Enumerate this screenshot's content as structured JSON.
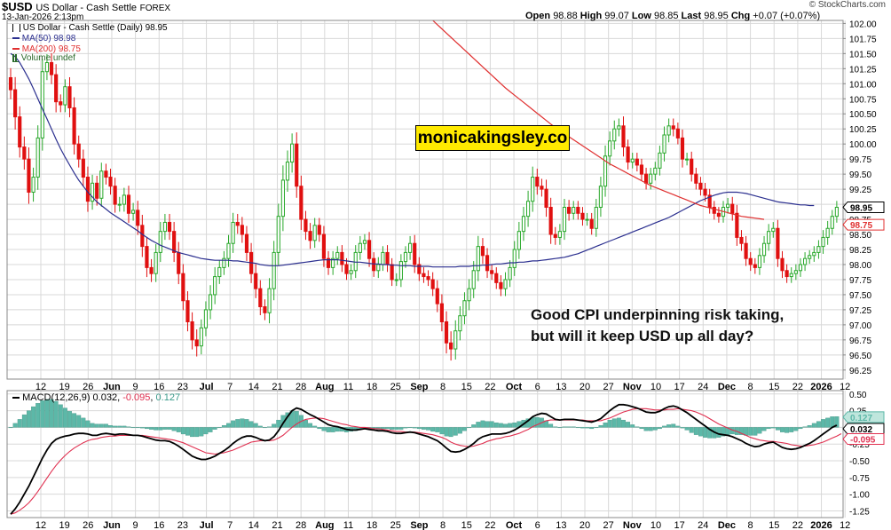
{
  "header": {
    "symbol": "$USD",
    "name": "US Dollar - Cash Settle",
    "exchange": "FOREX",
    "date": "13-Jan-2026 2:13pm",
    "open_label": "Open",
    "open": "98.88",
    "high_label": "High",
    "high": "99.07",
    "low_label": "Low",
    "low": "98.85",
    "last_label": "Last",
    "last": "98.95",
    "chg_label": "Chg",
    "chg": "+0.07 (+0.07%)",
    "brand": "© StockCharts.com"
  },
  "legend": {
    "main": "US Dollar - Cash Settle (Daily) 98.95",
    "ma50": "MA(50) 98.98",
    "ma200": "MA(200) 98.75",
    "volume": "Volume undef"
  },
  "watermark": "monicakingsley.co",
  "annotation": {
    "line1": "Good CPI underpinning risk taking,",
    "line2": "but will it keep USD up all day?"
  },
  "macd_legend": {
    "label": "MACD(12,26,9)",
    "macd": "0.032",
    "signal": "-0.095",
    "hist": "0.127"
  },
  "colors": {
    "up": "#28a82a",
    "down": "#e01010",
    "ma50": "#2b2f8f",
    "ma200": "#e03030",
    "macd": "#000000",
    "signal": "#e03050",
    "hist": "#5cb8a8",
    "grid": "#d8d8d8"
  },
  "chart_data": {
    "type": "candlestick",
    "price_ylim": [
      96.1,
      102.05
    ],
    "price_ticks": [
      "102.00",
      "101.75",
      "101.50",
      "101.25",
      "101.00",
      "100.75",
      "100.50",
      "100.25",
      "100.00",
      "99.75",
      "99.50",
      "99.25",
      "99.00",
      "98.75",
      "98.50",
      "98.25",
      "98.00",
      "97.75",
      "97.50",
      "97.25",
      "97.00",
      "96.75",
      "96.50",
      "96.25"
    ],
    "price_tags": [
      {
        "label": "98.95",
        "value": 98.95,
        "color": "#000000"
      },
      {
        "label": "98.75",
        "value": 98.75,
        "color": "#e03030"
      }
    ],
    "macd_ylim": [
      -1.35,
      0.55
    ],
    "macd_ticks": [
      "0.50",
      "0.25",
      "0.00",
      "-0.25",
      "-0.50",
      "-0.75",
      "-1.00",
      "-1.25"
    ],
    "macd_tags": [
      {
        "label": "0.127",
        "value": 0.127,
        "color": "#5cb8a8"
      },
      {
        "label": "0.032",
        "value": 0.032,
        "color": "#000000"
      },
      {
        "label": "-0.095",
        "value": -0.095,
        "color": "#e03050"
      }
    ],
    "x_labels": [
      "12",
      "19",
      "26",
      "Jun",
      "9",
      "16",
      "23",
      "Jul",
      "7",
      "14",
      "21",
      "28",
      "Aug",
      "11",
      "18",
      "25",
      "Sep",
      "8",
      "15",
      "22",
      "Oct",
      "6",
      "13",
      "20",
      "27",
      "Nov",
      "10",
      "17",
      "24",
      "Dec",
      "8",
      "15",
      "22",
      "2026",
      "12"
    ],
    "x_label_bold": [
      false,
      false,
      false,
      true,
      false,
      false,
      false,
      true,
      false,
      false,
      false,
      false,
      true,
      false,
      false,
      false,
      true,
      false,
      false,
      false,
      true,
      false,
      false,
      false,
      false,
      true,
      false,
      false,
      false,
      true,
      false,
      false,
      false,
      true,
      false
    ],
    "close": [
      100.9,
      100.45,
      99.95,
      99.75,
      99.2,
      99.45,
      100.1,
      101.2,
      101.35,
      101.15,
      100.7,
      100.65,
      100.95,
      100.6,
      100.0,
      99.75,
      99.45,
      99.05,
      99.35,
      99.1,
      99.55,
      99.45,
      99.3,
      99.0,
      99.0,
      99.15,
      98.85,
      98.9,
      98.65,
      98.3,
      97.95,
      97.85,
      98.2,
      98.55,
      98.7,
      98.55,
      98.2,
      97.85,
      97.4,
      97.05,
      96.75,
      96.65,
      96.95,
      97.25,
      97.5,
      97.8,
      97.95,
      98.1,
      98.35,
      98.7,
      98.65,
      98.5,
      98.2,
      97.85,
      97.6,
      97.3,
      97.2,
      97.6,
      98.2,
      98.8,
      99.4,
      99.7,
      100.0,
      99.3,
      98.75,
      98.55,
      98.4,
      98.65,
      98.5,
      98.1,
      97.95,
      98.1,
      98.2,
      98.0,
      97.85,
      97.9,
      98.2,
      98.35,
      98.4,
      98.1,
      97.9,
      98.0,
      98.2,
      98.0,
      97.75,
      97.75,
      98.05,
      98.2,
      98.35,
      98.0,
      97.85,
      97.8,
      97.75,
      97.6,
      97.35,
      97.05,
      96.7,
      96.6,
      96.9,
      97.15,
      97.4,
      97.6,
      97.9,
      98.3,
      98.15,
      97.9,
      97.85,
      97.7,
      97.6,
      97.75,
      97.95,
      98.25,
      98.55,
      98.8,
      99.05,
      99.45,
      99.3,
      99.25,
      98.95,
      98.5,
      98.45,
      98.55,
      98.95,
      98.85,
      98.95,
      98.85,
      98.75,
      98.75,
      98.6,
      98.95,
      99.3,
      99.8,
      100.05,
      100.25,
      100.3,
      99.95,
      99.7,
      99.75,
      99.65,
      99.5,
      99.35,
      99.5,
      99.6,
      99.85,
      100.15,
      100.3,
      100.25,
      100.1,
      99.75,
      99.75,
      99.5,
      99.35,
      99.25,
      99.15,
      98.95,
      98.85,
      98.8,
      98.95,
      99.0,
      98.85,
      98.45,
      98.35,
      98.1,
      98.0,
      97.95,
      98.15,
      98.35,
      98.55,
      98.6,
      98.1,
      97.9,
      97.8,
      97.85,
      97.9,
      98.0,
      98.1,
      98.15,
      98.2,
      98.3,
      98.45,
      98.6,
      98.8,
      98.95
    ],
    "range": [
      0.45,
      0.6,
      0.5,
      0.5,
      0.55,
      0.45,
      0.6,
      0.6,
      0.4,
      0.45,
      0.5,
      0.35,
      0.35,
      0.45,
      0.5,
      0.4,
      0.45,
      0.5,
      0.4,
      0.35,
      0.4,
      0.35,
      0.4,
      0.4,
      0.35,
      0.35,
      0.45,
      0.35,
      0.45,
      0.5,
      0.45,
      0.4,
      0.4,
      0.45,
      0.4,
      0.4,
      0.45,
      0.5,
      0.45,
      0.45,
      0.45,
      0.5,
      0.4,
      0.4,
      0.45,
      0.45,
      0.35,
      0.35,
      0.4,
      0.45,
      0.4,
      0.4,
      0.4,
      0.45,
      0.45,
      0.4,
      0.35,
      0.5,
      0.55,
      0.6,
      0.7,
      0.55,
      0.5,
      0.55,
      0.5,
      0.4,
      0.4,
      0.35,
      0.35,
      0.4,
      0.35,
      0.35,
      0.3,
      0.35,
      0.3,
      0.3,
      0.35,
      0.35,
      0.3,
      0.4,
      0.3,
      0.35,
      0.3,
      0.35,
      0.3,
      0.3,
      0.35,
      0.3,
      0.35,
      0.4,
      0.35,
      0.3,
      0.3,
      0.35,
      0.4,
      0.45,
      0.5,
      0.55,
      0.5,
      0.45,
      0.4,
      0.45,
      0.45,
      0.5,
      0.4,
      0.35,
      0.3,
      0.3,
      0.35,
      0.35,
      0.35,
      0.4,
      0.45,
      0.45,
      0.5,
      0.5,
      0.4,
      0.35,
      0.45,
      0.45,
      0.35,
      0.35,
      0.4,
      0.35,
      0.3,
      0.3,
      0.3,
      0.3,
      0.3,
      0.4,
      0.45,
      0.5,
      0.45,
      0.4,
      0.35,
      0.45,
      0.35,
      0.3,
      0.3,
      0.3,
      0.3,
      0.3,
      0.3,
      0.35,
      0.4,
      0.35,
      0.35,
      0.3,
      0.4,
      0.3,
      0.35,
      0.3,
      0.3,
      0.3,
      0.3,
      0.3,
      0.3,
      0.3,
      0.3,
      0.35,
      0.4,
      0.35,
      0.35,
      0.3,
      0.3,
      0.35,
      0.35,
      0.35,
      0.3,
      0.4,
      0.35,
      0.3,
      0.3,
      0.3,
      0.3,
      0.3,
      0.25,
      0.3,
      0.3,
      0.35,
      0.35,
      0.3,
      0.3
    ],
    "ma50": [
      101.5,
      101.45,
      101.35,
      101.22,
      101.08,
      100.92,
      100.75,
      100.58,
      100.42,
      100.25,
      100.08,
      99.92,
      99.78,
      99.65,
      99.52,
      99.4,
      99.3,
      99.2,
      99.12,
      99.04,
      98.98,
      98.92,
      98.86,
      98.81,
      98.76,
      98.71,
      98.66,
      98.61,
      98.56,
      98.5,
      98.45,
      98.4,
      98.36,
      98.32,
      98.29,
      98.26,
      98.23,
      98.2,
      98.18,
      98.16,
      98.14,
      98.12,
      98.1,
      98.09,
      98.08,
      98.07,
      98.07,
      98.07,
      98.07,
      98.06,
      98.06,
      98.05,
      98.04,
      98.03,
      98.02,
      98.0,
      97.99,
      97.98,
      97.98,
      97.98,
      97.99,
      98.0,
      98.01,
      98.02,
      98.03,
      98.04,
      98.05,
      98.06,
      98.07,
      98.08,
      98.08,
      98.08,
      98.08,
      98.07,
      98.06,
      98.05,
      98.04,
      98.04,
      98.03,
      98.02,
      98.01,
      98.01,
      98.0,
      98.0,
      97.99,
      97.99,
      97.98,
      97.98,
      97.98,
      97.97,
      97.97,
      97.97,
      97.97,
      97.96,
      97.96,
      97.96,
      97.96,
      97.96,
      97.96,
      97.97,
      97.97,
      97.97,
      97.98,
      97.98,
      97.99,
      97.99,
      98.0,
      98.01,
      98.01,
      98.02,
      98.03,
      98.03,
      98.04,
      98.04,
      98.05,
      98.06,
      98.06,
      98.07,
      98.08,
      98.09,
      98.1,
      98.11,
      98.12,
      98.14,
      98.16,
      98.18,
      98.21,
      98.24,
      98.27,
      98.3,
      98.33,
      98.36,
      98.39,
      98.42,
      98.45,
      98.48,
      98.51,
      98.54,
      98.57,
      98.6,
      98.63,
      98.66,
      98.69,
      98.72,
      98.75,
      98.78,
      98.82,
      98.86,
      98.9,
      98.94,
      98.98,
      99.02,
      99.06,
      99.09,
      99.12,
      99.15,
      99.17,
      99.19,
      99.2,
      99.2,
      99.2,
      99.19,
      99.18,
      99.16,
      99.14,
      99.12,
      99.1,
      99.08,
      99.06,
      99.04,
      99.03,
      99.02,
      99.01,
      99.0,
      98.99,
      98.99,
      98.98,
      98.98
    ],
    "ma200": [
      null,
      null,
      null,
      null,
      null,
      null,
      null,
      null,
      null,
      null,
      null,
      null,
      null,
      null,
      null,
      null,
      null,
      null,
      null,
      null,
      null,
      null,
      null,
      null,
      null,
      null,
      null,
      null,
      null,
      null,
      null,
      null,
      null,
      null,
      null,
      null,
      null,
      null,
      null,
      null,
      null,
      null,
      null,
      null,
      null,
      null,
      null,
      null,
      null,
      null,
      null,
      null,
      null,
      null,
      null,
      null,
      null,
      null,
      null,
      null,
      null,
      null,
      null,
      null,
      null,
      null,
      null,
      null,
      null,
      null,
      null,
      null,
      null,
      null,
      null,
      null,
      null,
      null,
      null,
      null,
      null,
      null,
      null,
      null,
      null,
      null,
      null,
      null,
      null,
      null,
      null,
      null,
      null,
      102.05,
      101.98,
      101.91,
      101.84,
      101.77,
      101.7,
      101.63,
      101.56,
      101.49,
      101.42,
      101.35,
      101.28,
      101.21,
      101.14,
      101.07,
      101.0,
      100.93,
      100.87,
      100.81,
      100.75,
      100.69,
      100.63,
      100.57,
      100.51,
      100.45,
      100.39,
      100.33,
      100.27,
      100.22,
      100.17,
      100.12,
      100.07,
      100.02,
      99.97,
      99.92,
      99.87,
      99.82,
      99.77,
      99.72,
      99.67,
      99.63,
      99.59,
      99.55,
      99.51,
      99.47,
      99.43,
      99.39,
      99.35,
      99.31,
      99.28,
      99.25,
      99.22,
      99.19,
      99.16,
      99.13,
      99.1,
      99.07,
      99.04,
      99.01,
      98.98,
      98.96,
      98.94,
      98.92,
      98.9,
      98.88,
      98.86,
      98.84,
      98.82,
      98.8,
      98.79,
      98.78,
      98.77,
      98.76,
      98.75
    ],
    "macd": [
      -1.3,
      -1.22,
      -1.12,
      -1.0,
      -0.88,
      -0.74,
      -0.6,
      -0.46,
      -0.34,
      -0.24,
      -0.18,
      -0.15,
      -0.13,
      -0.12,
      -0.1,
      -0.09,
      -0.09,
      -0.1,
      -0.12,
      -0.12,
      -0.1,
      -0.09,
      -0.1,
      -0.11,
      -0.1,
      -0.1,
      -0.11,
      -0.12,
      -0.12,
      -0.13,
      -0.15,
      -0.17,
      -0.19,
      -0.2,
      -0.2,
      -0.21,
      -0.24,
      -0.28,
      -0.33,
      -0.38,
      -0.43,
      -0.46,
      -0.48,
      -0.48,
      -0.46,
      -0.43,
      -0.39,
      -0.35,
      -0.3,
      -0.24,
      -0.19,
      -0.15,
      -0.13,
      -0.13,
      -0.15,
      -0.18,
      -0.2,
      -0.19,
      -0.14,
      -0.05,
      0.06,
      0.16,
      0.25,
      0.29,
      0.27,
      0.23,
      0.19,
      0.16,
      0.12,
      0.08,
      0.04,
      0.02,
      0.01,
      -0.01,
      -0.03,
      -0.04,
      -0.04,
      -0.03,
      -0.02,
      -0.03,
      -0.04,
      -0.05,
      -0.05,
      -0.06,
      -0.08,
      -0.09,
      -0.09,
      -0.08,
      -0.07,
      -0.08,
      -0.1,
      -0.12,
      -0.14,
      -0.17,
      -0.2,
      -0.25,
      -0.31,
      -0.36,
      -0.37,
      -0.36,
      -0.33,
      -0.29,
      -0.24,
      -0.18,
      -0.14,
      -0.12,
      -0.1,
      -0.1,
      -0.1,
      -0.09,
      -0.07,
      -0.04,
      0.0,
      0.05,
      0.1,
      0.16,
      0.19,
      0.21,
      0.2,
      0.16,
      0.12,
      0.11,
      0.12,
      0.12,
      0.12,
      0.11,
      0.1,
      0.09,
      0.08,
      0.1,
      0.13,
      0.19,
      0.25,
      0.3,
      0.34,
      0.34,
      0.33,
      0.31,
      0.29,
      0.26,
      0.23,
      0.22,
      0.22,
      0.24,
      0.28,
      0.31,
      0.32,
      0.3,
      0.26,
      0.22,
      0.17,
      0.12,
      0.07,
      0.02,
      -0.03,
      -0.07,
      -0.1,
      -0.11,
      -0.12,
      -0.14,
      -0.17,
      -0.2,
      -0.24,
      -0.27,
      -0.29,
      -0.28,
      -0.25,
      -0.23,
      -0.22,
      -0.26,
      -0.3,
      -0.32,
      -0.33,
      -0.32,
      -0.3,
      -0.27,
      -0.24,
      -0.2,
      -0.15,
      -0.1,
      -0.05,
      0.0,
      0.032
    ],
    "signal": [
      -1.3,
      -1.28,
      -1.24,
      -1.19,
      -1.13,
      -1.05,
      -0.96,
      -0.86,
      -0.76,
      -0.66,
      -0.57,
      -0.49,
      -0.42,
      -0.36,
      -0.31,
      -0.27,
      -0.23,
      -0.2,
      -0.18,
      -0.17,
      -0.15,
      -0.14,
      -0.13,
      -0.13,
      -0.12,
      -0.12,
      -0.12,
      -0.12,
      -0.12,
      -0.12,
      -0.13,
      -0.14,
      -0.15,
      -0.16,
      -0.17,
      -0.18,
      -0.19,
      -0.21,
      -0.23,
      -0.26,
      -0.29,
      -0.32,
      -0.35,
      -0.38,
      -0.39,
      -0.4,
      -0.39,
      -0.38,
      -0.36,
      -0.34,
      -0.31,
      -0.28,
      -0.25,
      -0.22,
      -0.21,
      -0.2,
      -0.2,
      -0.2,
      -0.19,
      -0.16,
      -0.12,
      -0.06,
      0.0,
      0.05,
      0.09,
      0.12,
      0.13,
      0.14,
      0.14,
      0.13,
      0.11,
      0.09,
      0.07,
      0.05,
      0.04,
      0.02,
      0.01,
      0.0,
      0.0,
      -0.01,
      -0.02,
      -0.02,
      -0.03,
      -0.04,
      -0.05,
      -0.06,
      -0.06,
      -0.07,
      -0.07,
      -0.07,
      -0.08,
      -0.09,
      -0.1,
      -0.11,
      -0.13,
      -0.15,
      -0.18,
      -0.22,
      -0.25,
      -0.27,
      -0.28,
      -0.29,
      -0.28,
      -0.26,
      -0.24,
      -0.21,
      -0.19,
      -0.17,
      -0.16,
      -0.14,
      -0.13,
      -0.11,
      -0.09,
      -0.06,
      -0.03,
      0.01,
      0.04,
      0.07,
      0.1,
      0.11,
      0.11,
      0.11,
      0.11,
      0.11,
      0.11,
      0.11,
      0.11,
      0.1,
      0.1,
      0.1,
      0.1,
      0.12,
      0.14,
      0.17,
      0.2,
      0.23,
      0.25,
      0.27,
      0.28,
      0.28,
      0.28,
      0.27,
      0.26,
      0.26,
      0.26,
      0.27,
      0.27,
      0.28,
      0.27,
      0.26,
      0.25,
      0.23,
      0.2,
      0.17,
      0.13,
      0.09,
      0.05,
      0.02,
      -0.01,
      -0.04,
      -0.06,
      -0.09,
      -0.12,
      -0.15,
      -0.17,
      -0.19,
      -0.2,
      -0.21,
      -0.21,
      -0.22,
      -0.23,
      -0.24,
      -0.26,
      -0.27,
      -0.28,
      -0.28,
      -0.27,
      -0.26,
      -0.24,
      -0.22,
      -0.19,
      -0.16,
      -0.13,
      -0.095
    ]
  }
}
